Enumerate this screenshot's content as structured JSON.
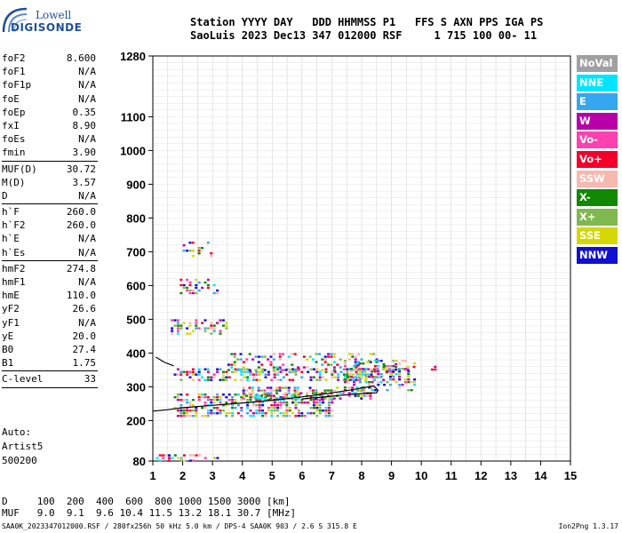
{
  "logo": {
    "brand": "Lowell",
    "product": "DIGISONDE"
  },
  "header": {
    "line1": "Station YYYY DAY   DDD HHMMSS P1   FFS S AXN PPS IGA PS",
    "line2": "SaoLuis 2023 Dec13 347 012000 RSF     1 715 100 00- 11"
  },
  "params": [
    {
      "label": "foF2",
      "value": "8.600"
    },
    {
      "label": "foF1",
      "value": "N/A"
    },
    {
      "label": "foF1p",
      "value": "N/A"
    },
    {
      "label": "foE",
      "value": "N/A"
    },
    {
      "label": "foEp",
      "value": "0.35"
    },
    {
      "label": "fxI",
      "value": "8.90"
    },
    {
      "label": "foEs",
      "value": "N/A"
    },
    {
      "label": "fmin",
      "value": "3.90"
    },
    {
      "sep": true
    },
    {
      "label": "MUF(D)",
      "value": "30.72"
    },
    {
      "label": "M(D)",
      "value": "3.57"
    },
    {
      "label": "D",
      "value": "N/A"
    },
    {
      "sep": true
    },
    {
      "label": "h`F",
      "value": "260.0"
    },
    {
      "label": "h`F2",
      "value": "260.0"
    },
    {
      "label": "h`E",
      "value": "N/A"
    },
    {
      "label": "h`Es",
      "value": "N/A"
    },
    {
      "sep": true
    },
    {
      "label": "hmF2",
      "value": "274.8"
    },
    {
      "label": "hmF1",
      "value": "N/A"
    },
    {
      "label": "hmE",
      "value": "110.0"
    },
    {
      "label": "yF2",
      "value": "26.6"
    },
    {
      "label": "yF1",
      "value": "N/A"
    },
    {
      "label": "yE",
      "value": "20.0"
    },
    {
      "label": "B0",
      "value": "27.4"
    },
    {
      "label": "B1",
      "value": "1.75"
    },
    {
      "sep": true
    },
    {
      "label": "C-level",
      "value": "33"
    },
    {
      "sep": true
    }
  ],
  "auto": {
    "line1": "Auto:",
    "line2": "Artist5",
    "line3": "500200"
  },
  "legend": [
    {
      "label": "NoVal",
      "color": "#a0a0a0"
    },
    {
      "label": "NNE",
      "color": "#00e5ff"
    },
    {
      "label": "E",
      "color": "#36a6f0"
    },
    {
      "label": "W",
      "color": "#b800a8"
    },
    {
      "label": "Vo-",
      "color": "#ff40b0"
    },
    {
      "label": "Vo+",
      "color": "#f4002a"
    },
    {
      "label": "SSW",
      "color": "#f7b8b0"
    },
    {
      "label": "X-",
      "color": "#118800"
    },
    {
      "label": "X+",
      "color": "#80b850"
    },
    {
      "label": "SSE",
      "color": "#d4d800"
    },
    {
      "label": "NNW",
      "color": "#1010d0"
    }
  ],
  "muf_table": {
    "row1": "D     100  200  400  600  800 1000 1500 3000 [km]",
    "row2": "MUF   9.0  9.1  9.6 10.4 11.5 13.2 18.1 30.7 [MHz]"
  },
  "footer": "SAA0K_2023347012000.RSF / 280fx256h 50 kHz 5.0 km / DPS-4 SAA0K 903 / 2.6 S 315.8 E",
  "version": "Ion2Png 1.3.17",
  "chart_data": {
    "type": "scatter",
    "title": "",
    "xlabel": "",
    "ylabel": "",
    "xlim": [
      1,
      15
    ],
    "ylim": [
      80,
      1280
    ],
    "x_ticks": [
      1,
      2,
      3,
      4,
      5,
      6,
      7,
      8,
      9,
      10,
      11,
      12,
      13,
      14,
      15
    ],
    "y_ticks": [
      80,
      200,
      300,
      400,
      500,
      600,
      700,
      800,
      900,
      1000,
      1100,
      1280
    ],
    "grid": true,
    "legend_position": "right",
    "traces": [
      {
        "name": "o-trace",
        "color": "#000000",
        "points": [
          [
            1.0,
            228
          ],
          [
            1.5,
            232
          ],
          [
            2.0,
            238
          ],
          [
            3.0,
            245
          ],
          [
            4.0,
            252
          ],
          [
            5.0,
            260
          ],
          [
            6.0,
            270
          ],
          [
            7.0,
            282
          ],
          [
            7.6,
            290
          ],
          [
            8.1,
            298
          ],
          [
            8.4,
            303
          ],
          [
            8.55,
            290
          ],
          [
            8.5,
            282
          ],
          [
            8.0,
            280
          ],
          [
            7.0,
            272
          ],
          [
            6.0,
            264
          ]
        ]
      },
      {
        "name": "x-trace",
        "color": "#000000",
        "points": [
          [
            1.1,
            388
          ],
          [
            1.4,
            372
          ],
          [
            1.7,
            362
          ]
        ]
      }
    ],
    "echo_regions": [
      {
        "x": [
          1.7,
          7.0
        ],
        "y": [
          215,
          280
        ],
        "density": 0.55
      },
      {
        "x": [
          4.0,
          8.3
        ],
        "y": [
          265,
          300
        ],
        "density": 0.55
      },
      {
        "x": [
          1.7,
          9.0
        ],
        "y": [
          318,
          355
        ],
        "density": 0.45
      },
      {
        "x": [
          3.5,
          8.5
        ],
        "y": [
          345,
          400
        ],
        "density": 0.3
      },
      {
        "x": [
          7.4,
          9.8
        ],
        "y": [
          290,
          380
        ],
        "density": 0.4
      },
      {
        "x": [
          1.6,
          3.5
        ],
        "y": [
          460,
          500
        ],
        "density": 0.4
      },
      {
        "x": [
          1.8,
          3.2
        ],
        "y": [
          580,
          620
        ],
        "density": 0.35
      },
      {
        "x": [
          2.0,
          3.0
        ],
        "y": [
          690,
          730
        ],
        "density": 0.3
      },
      {
        "x": [
          1.0,
          3.3
        ],
        "y": [
          84,
          100
        ],
        "density": 0.3
      },
      {
        "x": [
          8.7,
          10.5
        ],
        "y": [
          340,
          370
        ],
        "density": 0.25
      }
    ]
  }
}
